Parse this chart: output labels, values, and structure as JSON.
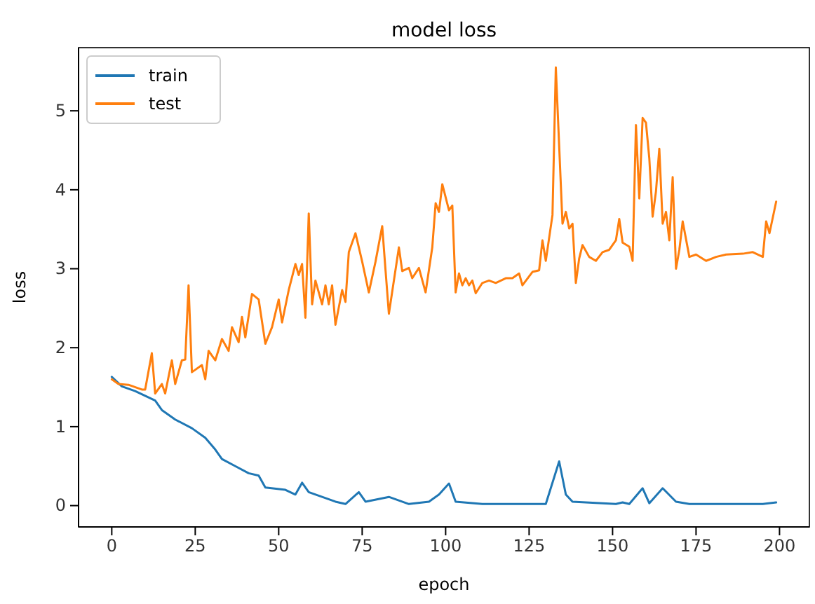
{
  "chart_data": {
    "type": "line",
    "title": "model loss",
    "xlabel": "epoch",
    "ylabel": "loss",
    "xlim": [
      -9.95,
      208.95
    ],
    "ylim": [
      -0.27,
      5.8
    ],
    "xticks": [
      0,
      25,
      50,
      75,
      100,
      125,
      150,
      175,
      200
    ],
    "yticks": [
      0,
      1,
      2,
      3,
      4,
      5
    ],
    "grid": false,
    "legend": "top left",
    "marker": "none",
    "line_style": "solid",
    "series": [
      {
        "name": "train",
        "color": "#1f77b4",
        "x": [
          0,
          3,
          7,
          10,
          13,
          15,
          19,
          24,
          28,
          31,
          33,
          37,
          41,
          44,
          46,
          52,
          55,
          57,
          59,
          63,
          67,
          70,
          74,
          76,
          83,
          89,
          95,
          98,
          101,
          103,
          111,
          130,
          134,
          136,
          138,
          151,
          153,
          155,
          159,
          161,
          165,
          169,
          173,
          195,
          199
        ],
        "values": [
          1.63,
          1.51,
          1.45,
          1.39,
          1.33,
          1.21,
          1.09,
          0.98,
          0.86,
          0.71,
          0.59,
          0.5,
          0.41,
          0.38,
          0.23,
          0.2,
          0.14,
          0.29,
          0.17,
          0.11,
          0.05,
          0.02,
          0.17,
          0.05,
          0.11,
          0.02,
          0.05,
          0.14,
          0.28,
          0.05,
          0.02,
          0.02,
          0.56,
          0.14,
          0.05,
          0.02,
          0.04,
          0.02,
          0.22,
          0.03,
          0.22,
          0.05,
          0.02,
          0.02,
          0.04
        ]
      },
      {
        "name": "test",
        "color": "#ff7f0e",
        "x": [
          0,
          2,
          5,
          9,
          10,
          12,
          13,
          15,
          16,
          18,
          19,
          21,
          22,
          23,
          24,
          27,
          28,
          29,
          31,
          33,
          35,
          36,
          38,
          39,
          40,
          42,
          44,
          46,
          48,
          50,
          51,
          53,
          55,
          56,
          57,
          58,
          59,
          60,
          61,
          63,
          64,
          65,
          66,
          67,
          69,
          70,
          71,
          73,
          75,
          77,
          79,
          81,
          82,
          83,
          86,
          87,
          89,
          90,
          92,
          94,
          96,
          97,
          98,
          99,
          101,
          102,
          103,
          104,
          105,
          106,
          107,
          108,
          109,
          111,
          113,
          115,
          118,
          120,
          122,
          123,
          126,
          128,
          129,
          130,
          132,
          133,
          135,
          136,
          137,
          138,
          139,
          140,
          141,
          143,
          145,
          147,
          149,
          151,
          152,
          153,
          155,
          156,
          157,
          158,
          159,
          160,
          161,
          162,
          163,
          164,
          165,
          166,
          167,
          168,
          169,
          170,
          171,
          173,
          175,
          178,
          181,
          184,
          189,
          192,
          195,
          196,
          197,
          199
        ],
        "values": [
          1.6,
          1.54,
          1.53,
          1.47,
          1.47,
          1.93,
          1.42,
          1.54,
          1.42,
          1.84,
          1.54,
          1.84,
          1.85,
          2.79,
          1.69,
          1.78,
          1.6,
          1.96,
          1.84,
          2.11,
          1.96,
          2.26,
          2.07,
          2.39,
          2.13,
          2.68,
          2.61,
          2.05,
          2.26,
          2.61,
          2.32,
          2.73,
          3.06,
          2.92,
          3.06,
          2.38,
          3.7,
          2.55,
          2.85,
          2.55,
          2.79,
          2.55,
          2.79,
          2.29,
          2.73,
          2.58,
          3.21,
          3.45,
          3.09,
          2.7,
          3.09,
          3.54,
          2.98,
          2.43,
          3.27,
          2.97,
          3.01,
          2.88,
          3.01,
          2.7,
          3.27,
          3.83,
          3.72,
          4.07,
          3.74,
          3.8,
          2.7,
          2.94,
          2.79,
          2.88,
          2.79,
          2.85,
          2.69,
          2.82,
          2.85,
          2.82,
          2.88,
          2.88,
          2.94,
          2.79,
          2.96,
          2.98,
          3.36,
          3.1,
          3.68,
          5.55,
          3.57,
          3.72,
          3.51,
          3.57,
          2.82,
          3.13,
          3.3,
          3.15,
          3.1,
          3.21,
          3.24,
          3.36,
          3.63,
          3.33,
          3.28,
          3.1,
          4.82,
          3.89,
          4.91,
          4.85,
          4.4,
          3.66,
          3.98,
          4.52,
          3.57,
          3.72,
          3.36,
          4.16,
          3.0,
          3.24,
          3.6,
          3.15,
          3.18,
          3.1,
          3.15,
          3.18,
          3.19,
          3.21,
          3.15,
          3.6,
          3.45,
          3.85
        ]
      }
    ]
  }
}
